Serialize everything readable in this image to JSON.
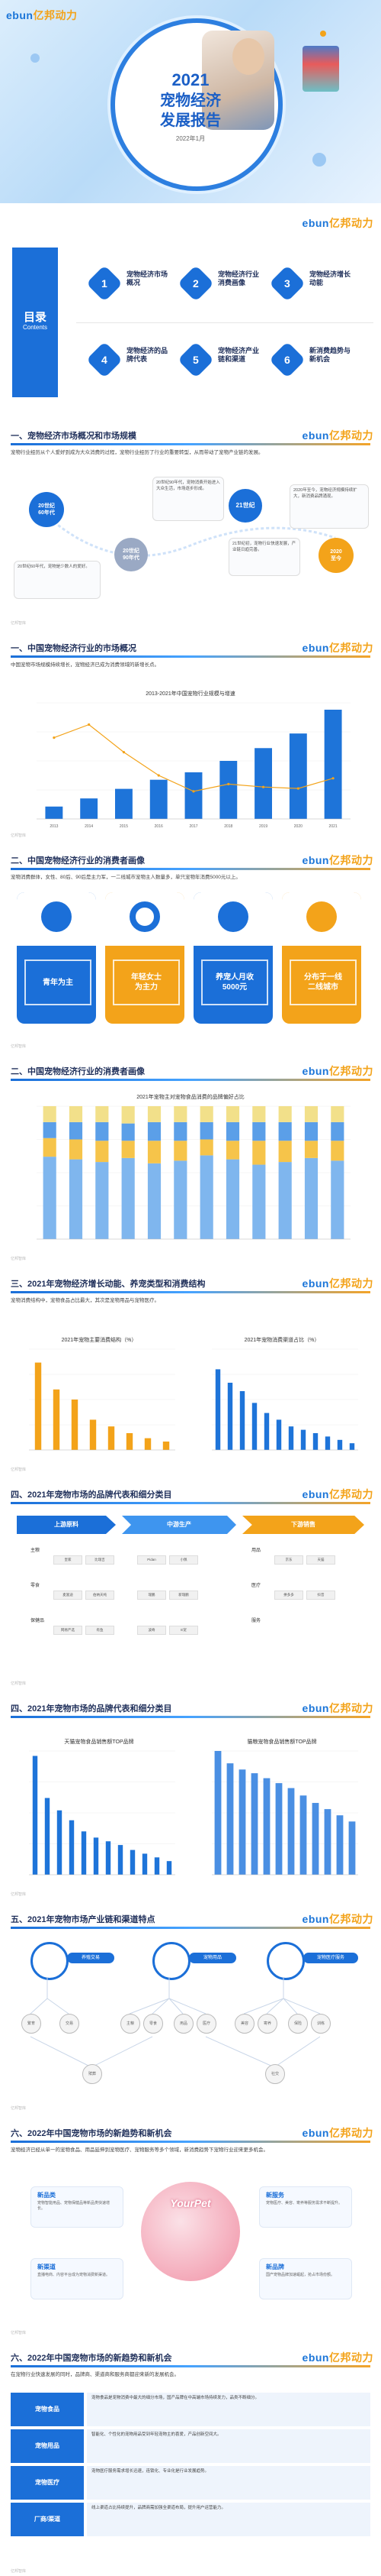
{
  "brand": {
    "name_a": "ebun",
    "name_b": "亿邦动力"
  },
  "cover": {
    "year": "2021",
    "title_1": "宠物经济",
    "title_2": "发展报告",
    "date": "2022年1月"
  },
  "toc": {
    "title_cn": "目录",
    "title_en": "Contents",
    "items": [
      {
        "num": "1",
        "label": "宠物经济市场概况"
      },
      {
        "num": "2",
        "label": "宠物经济行业消费画像"
      },
      {
        "num": "3",
        "label": "宠物经济增长动能"
      },
      {
        "num": "4",
        "label": "宠物经济的品牌代表"
      },
      {
        "num": "5",
        "label": "宠物经济产业链和渠道"
      },
      {
        "num": "6",
        "label": "新消费趋势与新机会"
      }
    ]
  },
  "s1": {
    "title": "一、宠物经济市场概况和市场规模",
    "intro": "宠物行业经历从个人爱好到成为大众消费的过程，宠物行业经历了",
    "intro_hl": "",
    "intro_tail": "行业的重要转型，从而带动了宠物产业链的发展。",
    "circles": [
      {
        "label": "20世纪\n60年代"
      },
      {
        "label": "20世纪\n90年代"
      },
      {
        "label": "21世纪"
      },
      {
        "label": "2020\n至今"
      }
    ],
    "notes": [
      "20世纪60年代，宠物是少数人的爱好。",
      "20世纪90年代，宠物消费开始进入大众生活，市场逐步形成。",
      "21世纪初，宠物行业快速发展，产业链日趋完善。",
      "2020年至今，宠物经济规模持续扩大，新消费品牌涌现。"
    ]
  },
  "s2": {
    "title": "一、中国宠物经济行业的市场概况",
    "text": "中国宠物市场规模持续增长，宠物经济已成为消费领域的新增长点。",
    "chart_title": "2013-2021年中国宠物行业规模与增速"
  },
  "chart_data": [
    {
      "type": "bar",
      "title": "2013-2021年中国宠物行业规模与增速",
      "categories": [
        "2013",
        "2014",
        "2015",
        "2016",
        "2017",
        "2018",
        "2019",
        "2020",
        "2021"
      ],
      "values": [
        128,
        212,
        311,
        405,
        482,
        600,
        732,
        883,
        1129
      ],
      "line_values": [
        56,
        65,
        46,
        30,
        19,
        24,
        22,
        21,
        28
      ],
      "ylim": [
        0,
        1200
      ]
    },
    {
      "type": "bar",
      "title": "2021年宠物主对宠物食品消费的品牌偏好占比",
      "categories": [
        "",
        "",
        "",
        "",
        "",
        "",
        "",
        "",
        "",
        "",
        "",
        ""
      ],
      "series": [
        {
          "name": "",
          "values": [
            62,
            60,
            58,
            61,
            57,
            59,
            63,
            60,
            56,
            58,
            61,
            59
          ]
        },
        {
          "name": "",
          "values": [
            14,
            15,
            16,
            13,
            17,
            15,
            12,
            14,
            18,
            16,
            13,
            15
          ]
        },
        {
          "name": "",
          "values": [
            12,
            13,
            14,
            13,
            14,
            14,
            13,
            14,
            14,
            14,
            14,
            14
          ]
        },
        {
          "name": "",
          "values": [
            12,
            12,
            12,
            13,
            12,
            12,
            12,
            12,
            12,
            12,
            12,
            12
          ]
        }
      ],
      "ylim": [
        0,
        100
      ]
    },
    {
      "type": "bar",
      "title": "2021年宠物主要消费结构（%）",
      "categories": [
        "",
        "",
        "",
        "",
        "",
        "",
        "",
        ""
      ],
      "values": [
        52,
        36,
        30,
        18,
        14,
        10,
        7,
        5
      ],
      "ylim": [
        0,
        60
      ]
    },
    {
      "type": "bar",
      "title": "2021年宠物消费渠道占比（%）",
      "categories": [
        "",
        "",
        "",
        "",
        "",
        "",
        "",
        "",
        "",
        "",
        "",
        ""
      ],
      "values": [
        48,
        40,
        35,
        28,
        22,
        18,
        14,
        12,
        10,
        8,
        6,
        4
      ],
      "ylim": [
        0,
        60
      ]
    },
    {
      "type": "bar",
      "title": "天猫宠物食品销售额TOP品牌",
      "categories": [
        "",
        "",
        "",
        "",
        "",
        "",
        "",
        "",
        "",
        "",
        "",
        ""
      ],
      "values": [
        96,
        62,
        52,
        44,
        35,
        30,
        27,
        24,
        20,
        17,
        14,
        11
      ],
      "ylim": [
        0,
        100
      ]
    },
    {
      "type": "bar",
      "title": "猫粮宠物食品销售额TOP品牌",
      "categories": [
        "",
        "",
        "",
        "",
        "",
        "",
        "",
        "",
        "",
        "",
        "",
        ""
      ],
      "values": [
        100,
        90,
        85,
        82,
        78,
        74,
        70,
        64,
        58,
        53,
        48,
        43
      ],
      "ylim": [
        0,
        100
      ]
    }
  ],
  "s3": {
    "title": "二、中国宠物经济行业的消费者画像",
    "text": "宠物消费群体，女性、80后、90后是主力军，一二线城市宠物主人数量多，单只宠物年消费5000元以上。",
    "cards": [
      {
        "label": "青年为主",
        "sub": "80后90后"
      },
      {
        "label": "年轻女士\n为主力",
        "sub": ""
      },
      {
        "label": "养宠人月收\n5000元",
        "sub": ""
      },
      {
        "label": "分布于一线\n二线城市",
        "sub": ""
      }
    ]
  },
  "s4": {
    "title": "二、中国宠物经济行业的消费者画像",
    "chart_title": "2021年宠物主对宠物食品消费的品牌偏好占比"
  },
  "s5": {
    "title": "三、2021年宠物经济增长动能、养宠类型和消费结构",
    "text": "宠物消费结构中，宠物食品占比最大，其次是宠物用品与宠物医疗。",
    "chart1_title": "2021年宠物主要消费结构（%）",
    "chart2_title": "2021年宠物消费渠道占比（%）"
  },
  "s6": {
    "title": "四、2021年宠物市场的品牌代表和细分类目",
    "heads": [
      "上游原料",
      "中游生产",
      "下游销售"
    ],
    "categories": [
      "主粮",
      "零食",
      "保健品",
      "用品",
      "医疗",
      "服务"
    ],
    "brands": [
      "皇家",
      "比瑞吉",
      "麦富迪",
      "伯纳天纯",
      "网易严选",
      "有鱼",
      "Pidan",
      "小佩",
      "瑞鹏",
      "新瑞鹏",
      "波奇",
      "E宠",
      "京东",
      "天猫",
      "拼多多",
      "抖音"
    ]
  },
  "s7": {
    "title": "四、2021年宠物市场的品牌代表和细分类目",
    "chart1_title": "天猫宠物食品销售额TOP品牌",
    "chart2_title": "猫粮宠物食品销售额TOP品牌"
  },
  "s8": {
    "title": "五、2021年宠物市场产业链和渠道特点",
    "pills": [
      "养殖交易",
      "宠物用品",
      "宠物医疗服务"
    ],
    "nodes": [
      "繁育",
      "交易",
      "主粮",
      "零食",
      "用品",
      "医疗",
      "美容",
      "寄养",
      "保险",
      "训练",
      "殡葬",
      "社交"
    ]
  },
  "s9": {
    "title": "六、2022年中国宠物市场的新趋势和新机会",
    "text": "宠物经济已经从单一的宠物食品、用品延伸到宠物医疗、宠物服务等多个领域，新消费趋势下宠物行业迎来更多机会。",
    "center_label": "YourPet",
    "cards": [
      {
        "title": "新品类",
        "text": "宠物智能用品、宠物保健品等新品类快速增长。"
      },
      {
        "title": "新服务",
        "text": "宠物医疗、美容、寄养等服务需求不断提升。"
      },
      {
        "title": "新渠道",
        "text": "直播电商、内容平台成为宠物消费新渠道。"
      },
      {
        "title": "新品牌",
        "text": "国产宠物品牌加速崛起，抢占市场份额。"
      }
    ]
  },
  "s10": {
    "title": "六、2022年中国宠物市场的新趋势和新机会",
    "text": "在宠物行业快速发展的同时，品牌商、渠道商和服务商都迎来新的发展机会。",
    "rows": [
      {
        "label": "宠物食品",
        "text": "宠物食品是宠物消费中最大的细分市场，国产品牌在中高端市场持续发力，品类不断细分。"
      },
      {
        "label": "宠物用品",
        "text": "智能化、个性化的宠物用品受到年轻宠物主的喜爱，产品创新空间大。"
      },
      {
        "label": "宠物医疗",
        "text": "宠物医疗服务需求增长迅速，连锁化、专业化是行业发展趋势。"
      },
      {
        "label": "厂商/渠道",
        "text": "线上渠道占比持续提升，品牌商需加强全渠道布局，提升用户运营能力。"
      }
    ]
  },
  "footer": "亿邦智库"
}
